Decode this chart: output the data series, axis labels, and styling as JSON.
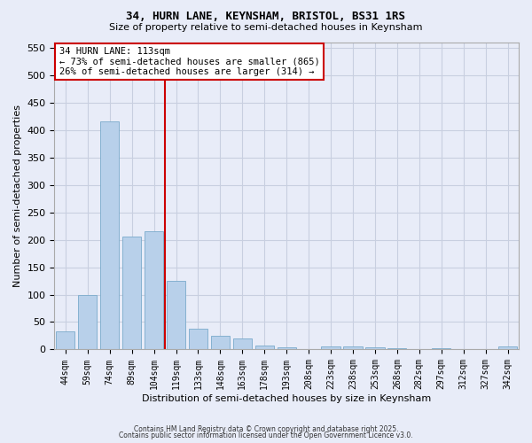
{
  "title": "34, HURN LANE, KEYNSHAM, BRISTOL, BS31 1RS",
  "subtitle": "Size of property relative to semi-detached houses in Keynsham",
  "xlabel": "Distribution of semi-detached houses by size in Keynsham",
  "ylabel": "Number of semi-detached properties",
  "categories": [
    "44sqm",
    "59sqm",
    "74sqm",
    "89sqm",
    "104sqm",
    "119sqm",
    "133sqm",
    "148sqm",
    "163sqm",
    "178sqm",
    "193sqm",
    "208sqm",
    "223sqm",
    "238sqm",
    "253sqm",
    "268sqm",
    "282sqm",
    "297sqm",
    "312sqm",
    "327sqm",
    "342sqm"
  ],
  "values": [
    33,
    100,
    415,
    205,
    215,
    125,
    38,
    25,
    20,
    8,
    4,
    0,
    6,
    5,
    4,
    3,
    1,
    3,
    0,
    1,
    5
  ],
  "bar_color": "#b8d0ea",
  "bar_edge_color": "#7aaacb",
  "vline_color": "#cc0000",
  "annotation_title": "34 HURN LANE: 113sqm",
  "annotation_line1": "← 73% of semi-detached houses are smaller (865)",
  "annotation_line2": "26% of semi-detached houses are larger (314) →",
  "annotation_box_color": "#cc0000",
  "ylim": [
    0,
    560
  ],
  "yticks": [
    0,
    50,
    100,
    150,
    200,
    250,
    300,
    350,
    400,
    450,
    500,
    550
  ],
  "background_color": "#e8ecf8",
  "plot_bg_color": "#e8ecf8",
  "grid_color": "#c8cfe0",
  "footer1": "Contains HM Land Registry data © Crown copyright and database right 2025.",
  "footer2": "Contains public sector information licensed under the Open Government Licence v3.0."
}
